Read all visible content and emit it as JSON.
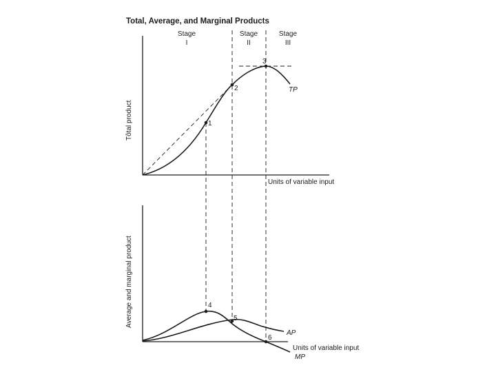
{
  "title": "Total, Average, and Marginal Products",
  "stages": [
    {
      "label": "Stage",
      "numeral": "I"
    },
    {
      "label": "Stage",
      "numeral": "II"
    },
    {
      "label": "Stage",
      "numeral": "III"
    }
  ],
  "top_panel": {
    "ylabel": "Tôtal product",
    "xlabel": "Units of variable input",
    "curve_label": "TP",
    "points": [
      "1",
      "2",
      "3"
    ]
  },
  "bottom_panel": {
    "ylabel": "Average and marginal product",
    "xlabel": "Units of variable input",
    "ap_label": "AP",
    "mp_label": "MP",
    "points": [
      "4",
      "5",
      "6"
    ]
  }
}
